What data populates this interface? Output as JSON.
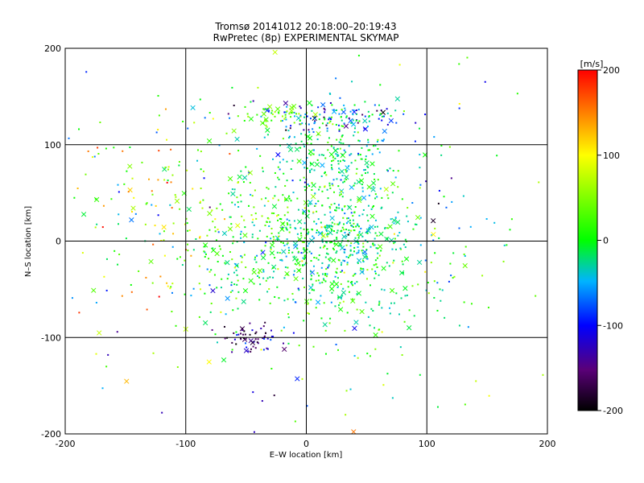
{
  "chart_data": {
    "type": "scatter",
    "title": "Tromsø 20141012 20:18:00–20:19:43",
    "subtitle": "RwPretec (8p) EXPERIMENTAL SKYMAP",
    "xlabel": "E–W location [km]",
    "ylabel": "N–S location [km]",
    "xlim": [
      -200,
      200
    ],
    "ylim": [
      -200,
      200
    ],
    "x_ticks": [
      -200,
      -100,
      0,
      100,
      200
    ],
    "y_ticks": [
      -200,
      -100,
      0,
      100,
      200
    ],
    "grid": true,
    "colorbar": {
      "label": "[m/s]",
      "range": [
        -200,
        200
      ],
      "ticks": [
        -200,
        -100,
        0,
        100,
        200
      ],
      "colormap": "rainbow (black–purple–blue–cyan–green–yellow–red)"
    },
    "marker_types": [
      "dot",
      "x"
    ],
    "clusters": [
      {
        "x": 20,
        "y": 130,
        "sx": 30,
        "sy": 10,
        "n": 130,
        "v": -70,
        "vs": 60
      },
      {
        "x": -25,
        "y": 130,
        "sx": 12,
        "sy": 5,
        "n": 40,
        "v": 40,
        "vs": 20
      },
      {
        "x": 25,
        "y": 90,
        "sx": 25,
        "sy": 25,
        "n": 220,
        "v": -20,
        "vs": 30
      },
      {
        "x": 30,
        "y": 5,
        "sx": 25,
        "sy": 20,
        "n": 220,
        "v": -20,
        "vs": 25
      },
      {
        "x": 20,
        "y": -30,
        "sx": 55,
        "sy": 35,
        "n": 380,
        "v": -10,
        "vs": 35
      },
      {
        "x": -30,
        "y": 20,
        "sx": 40,
        "sy": 35,
        "n": 220,
        "v": 20,
        "vs": 40
      },
      {
        "x": -45,
        "y": -100,
        "sx": 12,
        "sy": 8,
        "n": 60,
        "v": -160,
        "vs": 40
      },
      {
        "x": -120,
        "y": 30,
        "sx": 40,
        "sy": 60,
        "n": 110,
        "v": 80,
        "vs": 60
      },
      {
        "x": 0,
        "y": 0,
        "sx": 120,
        "sy": 110,
        "n": 260,
        "v": -20,
        "vs": 70
      }
    ]
  }
}
